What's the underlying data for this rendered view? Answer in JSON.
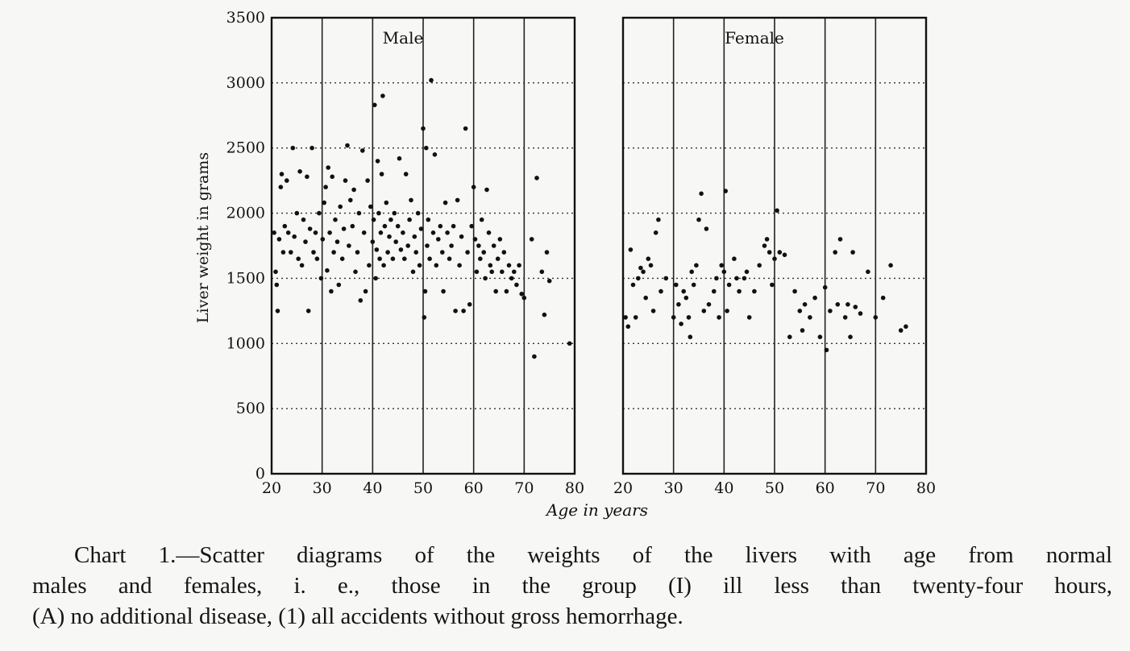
{
  "chart_data": [
    {
      "type": "scatter",
      "title": "Male",
      "xlabel": "Age in years",
      "ylabel": "Liver weight in grams",
      "xlim": [
        20,
        80
      ],
      "ylim": [
        0,
        3500
      ],
      "xticks": [
        "20",
        "30",
        "40",
        "50",
        "60",
        "70",
        "80"
      ],
      "yticks": [
        "0",
        "500",
        "1000",
        "1500",
        "2000",
        "2500",
        "3000",
        "3500"
      ],
      "grid": "solid vertical lines, dotted horizontal lines",
      "series": [
        {
          "points": [
            [
              20.5,
              1850
            ],
            [
              20.8,
              1550
            ],
            [
              21,
              1450
            ],
            [
              21.2,
              1250
            ],
            [
              21.5,
              1800
            ],
            [
              21.8,
              2200
            ],
            [
              22,
              2300
            ],
            [
              22.3,
              1700
            ],
            [
              22.6,
              1900
            ],
            [
              23,
              2250
            ],
            [
              23.3,
              1850
            ],
            [
              23.8,
              1700
            ],
            [
              24.2,
              2500
            ],
            [
              24.5,
              1820
            ],
            [
              25,
              2000
            ],
            [
              25.3,
              1650
            ],
            [
              25.6,
              2320
            ],
            [
              26,
              1600
            ],
            [
              26.3,
              1950
            ],
            [
              26.7,
              1780
            ],
            [
              27,
              2280
            ],
            [
              27.3,
              1250
            ],
            [
              27.6,
              1880
            ],
            [
              28,
              2500
            ],
            [
              28.3,
              1700
            ],
            [
              28.7,
              1850
            ],
            [
              29,
              1650
            ],
            [
              29.4,
              2000
            ],
            [
              29.8,
              1500
            ],
            [
              30.1,
              1800
            ],
            [
              30.4,
              2080
            ],
            [
              30.7,
              2200
            ],
            [
              31,
              1560
            ],
            [
              31.2,
              2350
            ],
            [
              31.5,
              1850
            ],
            [
              31.8,
              1400
            ],
            [
              32,
              2280
            ],
            [
              32.3,
              1700
            ],
            [
              32.6,
              1950
            ],
            [
              33,
              1780
            ],
            [
              33.3,
              1450
            ],
            [
              33.6,
              2050
            ],
            [
              34,
              1650
            ],
            [
              34.3,
              1880
            ],
            [
              34.6,
              2250
            ],
            [
              35,
              2520
            ],
            [
              35.3,
              1750
            ],
            [
              35.6,
              2100
            ],
            [
              36,
              1900
            ],
            [
              36.3,
              2180
            ],
            [
              36.6,
              1550
            ],
            [
              37,
              1700
            ],
            [
              37.3,
              2000
            ],
            [
              37.6,
              1330
            ],
            [
              38,
              2480
            ],
            [
              38.3,
              1850
            ],
            [
              38.6,
              1400
            ],
            [
              39,
              2250
            ],
            [
              39.3,
              1600
            ],
            [
              39.6,
              2050
            ],
            [
              40,
              1780
            ],
            [
              40.2,
              1950
            ],
            [
              40.4,
              2830
            ],
            [
              40.6,
              1500
            ],
            [
              40.8,
              1720
            ],
            [
              41,
              2400
            ],
            [
              41.2,
              2000
            ],
            [
              41.4,
              1650
            ],
            [
              41.6,
              1850
            ],
            [
              41.8,
              2300
            ],
            [
              42,
              2900
            ],
            [
              42.2,
              1600
            ],
            [
              42.4,
              1900
            ],
            [
              42.7,
              2080
            ],
            [
              43,
              1700
            ],
            [
              43.3,
              1820
            ],
            [
              43.6,
              1950
            ],
            [
              44,
              1650
            ],
            [
              44.3,
              2000
            ],
            [
              44.6,
              1780
            ],
            [
              45,
              1900
            ],
            [
              45.3,
              2420
            ],
            [
              45.6,
              1720
            ],
            [
              46,
              1850
            ],
            [
              46.3,
              1650
            ],
            [
              46.6,
              2300
            ],
            [
              47,
              1750
            ],
            [
              47.3,
              1950
            ],
            [
              47.6,
              2100
            ],
            [
              48,
              1550
            ],
            [
              48.3,
              1820
            ],
            [
              48.6,
              1700
            ],
            [
              49,
              2000
            ],
            [
              49.3,
              1600
            ],
            [
              49.6,
              1880
            ],
            [
              50,
              2650
            ],
            [
              50.2,
              1200
            ],
            [
              50.4,
              1400
            ],
            [
              50.6,
              2500
            ],
            [
              50.8,
              1750
            ],
            [
              51,
              1950
            ],
            [
              51.3,
              1650
            ],
            [
              51.6,
              3020
            ],
            [
              52,
              1850
            ],
            [
              52.3,
              2450
            ],
            [
              52.6,
              1600
            ],
            [
              53,
              1800
            ],
            [
              53.4,
              1900
            ],
            [
              53.8,
              1700
            ],
            [
              54,
              1400
            ],
            [
              54.4,
              2080
            ],
            [
              54.8,
              1850
            ],
            [
              55.2,
              1650
            ],
            [
              55.6,
              1750
            ],
            [
              56,
              1900
            ],
            [
              56.4,
              1250
            ],
            [
              56.8,
              2100
            ],
            [
              57.2,
              1600
            ],
            [
              57.6,
              1820
            ],
            [
              58,
              1250
            ],
            [
              58.4,
              2650
            ],
            [
              58.8,
              1700
            ],
            [
              59.2,
              1300
            ],
            [
              59.6,
              1900
            ],
            [
              60,
              2200
            ],
            [
              60.3,
              1800
            ],
            [
              60.6,
              1550
            ],
            [
              61,
              1750
            ],
            [
              61.3,
              1650
            ],
            [
              61.6,
              1950
            ],
            [
              62,
              1700
            ],
            [
              62.3,
              1500
            ],
            [
              62.6,
              2180
            ],
            [
              63,
              1850
            ],
            [
              63.3,
              1600
            ],
            [
              63.6,
              1550
            ],
            [
              64,
              1750
            ],
            [
              64.4,
              1400
            ],
            [
              64.8,
              1650
            ],
            [
              65.2,
              1800
            ],
            [
              65.6,
              1550
            ],
            [
              66,
              1700
            ],
            [
              66.5,
              1400
            ],
            [
              67,
              1600
            ],
            [
              67.5,
              1500
            ],
            [
              68,
              1550
            ],
            [
              68.5,
              1450
            ],
            [
              69,
              1600
            ],
            [
              69.5,
              1380
            ],
            [
              70,
              1350
            ],
            [
              71.5,
              1800
            ],
            [
              72,
              900
            ],
            [
              72.5,
              2270
            ],
            [
              73.5,
              1550
            ],
            [
              74,
              1220
            ],
            [
              74.5,
              1700
            ],
            [
              75,
              1480
            ],
            [
              79,
              1000
            ]
          ]
        }
      ]
    },
    {
      "type": "scatter",
      "title": "Female",
      "xlabel": "Age in years",
      "ylabel": "",
      "xlim": [
        20,
        80
      ],
      "ylim": [
        0,
        3500
      ],
      "xticks": [
        "20",
        "30",
        "40",
        "50",
        "60",
        "70",
        "80"
      ],
      "yticks": [],
      "grid": "solid vertical lines, dotted horizontal lines",
      "series": [
        {
          "points": [
            [
              20.5,
              1200
            ],
            [
              21,
              1130
            ],
            [
              21.5,
              1720
            ],
            [
              22,
              1450
            ],
            [
              22.5,
              1200
            ],
            [
              23,
              1500
            ],
            [
              23.5,
              1580
            ],
            [
              24,
              1550
            ],
            [
              24.5,
              1350
            ],
            [
              25,
              1650
            ],
            [
              25.5,
              1600
            ],
            [
              26,
              1250
            ],
            [
              26.5,
              1850
            ],
            [
              27,
              1950
            ],
            [
              27.5,
              1400
            ],
            [
              28.5,
              1500
            ],
            [
              30,
              1200
            ],
            [
              30.5,
              1450
            ],
            [
              31,
              1300
            ],
            [
              31.5,
              1150
            ],
            [
              32,
              1400
            ],
            [
              32.5,
              1350
            ],
            [
              33,
              1200
            ],
            [
              33.3,
              1050
            ],
            [
              33.6,
              1550
            ],
            [
              34,
              1450
            ],
            [
              34.5,
              1600
            ],
            [
              35,
              1950
            ],
            [
              35.5,
              2150
            ],
            [
              36,
              1250
            ],
            [
              36.5,
              1880
            ],
            [
              37,
              1300
            ],
            [
              38,
              1400
            ],
            [
              38.5,
              1500
            ],
            [
              39,
              1200
            ],
            [
              39.5,
              1600
            ],
            [
              40,
              1550
            ],
            [
              40.3,
              2170
            ],
            [
              40.6,
              1250
            ],
            [
              41,
              1450
            ],
            [
              42,
              1650
            ],
            [
              42.5,
              1500
            ],
            [
              43,
              1400
            ],
            [
              44,
              1500
            ],
            [
              44.5,
              1550
            ],
            [
              45,
              1200
            ],
            [
              46,
              1400
            ],
            [
              47,
              1600
            ],
            [
              48,
              1750
            ],
            [
              48.5,
              1800
            ],
            [
              49,
              1700
            ],
            [
              49.5,
              1450
            ],
            [
              50,
              1650
            ],
            [
              50.5,
              2020
            ],
            [
              51,
              1700
            ],
            [
              52,
              1680
            ],
            [
              53,
              1050
            ],
            [
              54,
              1400
            ],
            [
              55,
              1250
            ],
            [
              55.5,
              1100
            ],
            [
              56,
              1300
            ],
            [
              57,
              1200
            ],
            [
              58,
              1350
            ],
            [
              59,
              1050
            ],
            [
              60,
              1430
            ],
            [
              60.3,
              950
            ],
            [
              61,
              1250
            ],
            [
              62,
              1700
            ],
            [
              62.5,
              1300
            ],
            [
              63,
              1800
            ],
            [
              64,
              1200
            ],
            [
              64.5,
              1300
            ],
            [
              65,
              1050
            ],
            [
              65.5,
              1700
            ],
            [
              66,
              1280
            ],
            [
              67,
              1230
            ],
            [
              68.5,
              1550
            ],
            [
              70,
              1200
            ],
            [
              71.5,
              1350
            ],
            [
              73,
              1600
            ],
            [
              75,
              1100
            ],
            [
              76,
              1130
            ]
          ]
        }
      ]
    }
  ],
  "caption": {
    "line1": "Chart 1.—Scatter diagrams of the weights of the livers with age from normal",
    "line2": "males and females, i. e., those in the group (I) ill less than twenty-four hours,",
    "line3": "(A) no additional disease, (1) all accidents without gross hemorrhage."
  }
}
